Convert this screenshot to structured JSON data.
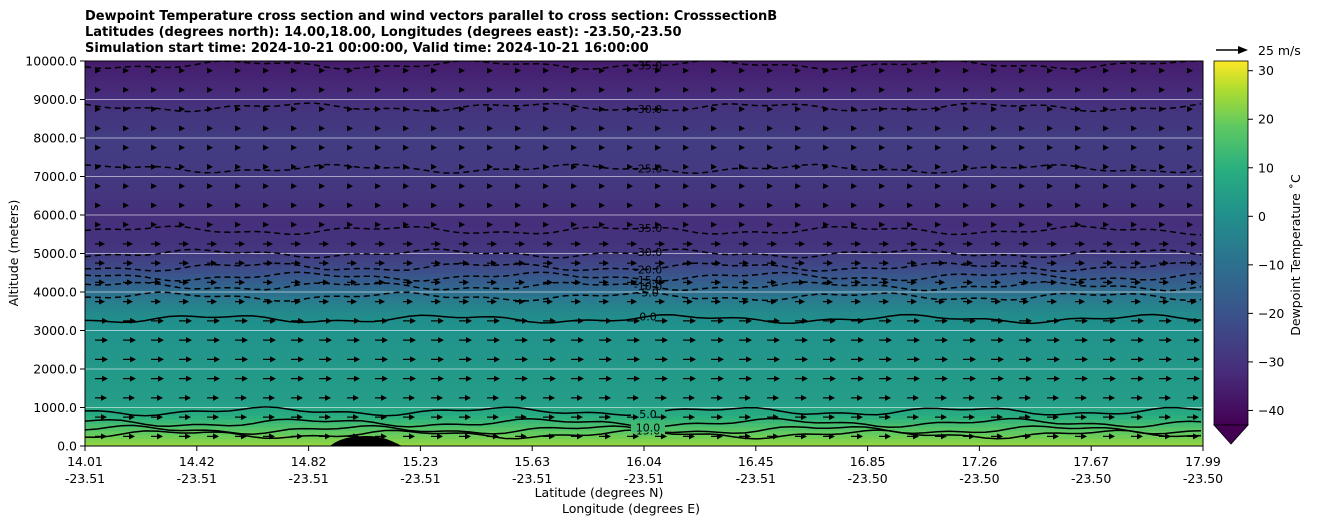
{
  "title_lines": [
    "Dewpoint Temperature cross section and wind vectors parallel to cross section: CrosssectionB",
    "Latitudes (degrees north): 14.00,18.00, Longitudes (degrees east): -23.50,-23.50",
    "Simulation start time: 2024-10-21 00:00:00, Valid time: 2024-10-21 16:00:00"
  ],
  "chart_data": {
    "type": "heatmap",
    "xlabel_lat": "Latitude (degrees N)",
    "xlabel_lon": "Longitude (degrees E)",
    "ylabel": "Altitude (meters)",
    "ylim": [
      0,
      10000
    ],
    "y_ticks": [
      "0.0",
      "1000.0",
      "2000.0",
      "3000.0",
      "4000.0",
      "5000.0",
      "6000.0",
      "7000.0",
      "8000.0",
      "9000.0",
      "10000.0"
    ],
    "x_ticks": [
      {
        "lat": "14.01",
        "lon": "-23.51"
      },
      {
        "lat": "14.42",
        "lon": "-23.51"
      },
      {
        "lat": "14.82",
        "lon": "-23.51"
      },
      {
        "lat": "15.23",
        "lon": "-23.51"
      },
      {
        "lat": "15.63",
        "lon": "-23.51"
      },
      {
        "lat": "16.04",
        "lon": "-23.51"
      },
      {
        "lat": "16.45",
        "lon": "-23.51"
      },
      {
        "lat": "16.85",
        "lon": "-23.50"
      },
      {
        "lat": "17.26",
        "lon": "-23.50"
      },
      {
        "lat": "17.67",
        "lon": "-23.50"
      },
      {
        "lat": "17.99",
        "lon": "-23.50"
      }
    ],
    "colorbar": {
      "label": "Dewpoint Temperature ˚C",
      "range": [
        -43,
        32
      ],
      "ticks": [
        "30",
        "20",
        "10",
        "0",
        "−10",
        "−20",
        "−30",
        "−40"
      ],
      "tick_values": [
        30,
        20,
        10,
        0,
        -10,
        -20,
        -30,
        -40
      ]
    },
    "quiver_key": "25 m/s",
    "dewpoint_profile": [
      {
        "alt": 0,
        "td": 24
      },
      {
        "alt": 400,
        "td": 18
      },
      {
        "alt": 800,
        "td": 9
      },
      {
        "alt": 1200,
        "td": 4
      },
      {
        "alt": 2000,
        "td": 3
      },
      {
        "alt": 3000,
        "td": 1
      },
      {
        "alt": 3300,
        "td": 0
      },
      {
        "alt": 3800,
        "td": -6
      },
      {
        "alt": 4200,
        "td": -15
      },
      {
        "alt": 4700,
        "td": -24
      },
      {
        "alt": 5200,
        "td": -30
      },
      {
        "alt": 6000,
        "td": -31
      },
      {
        "alt": 7000,
        "td": -28
      },
      {
        "alt": 8000,
        "td": -27
      },
      {
        "alt": 9000,
        "td": -31
      },
      {
        "alt": 10000,
        "td": -36
      }
    ],
    "contour_levels": [
      {
        "value": 20,
        "label": "20.0",
        "alt": 300,
        "dashed": false
      },
      {
        "value": 15,
        "label": "15.0",
        "alt": 420,
        "dashed": false
      },
      {
        "value": 10,
        "label": "10.0",
        "alt": 600,
        "dashed": false
      },
      {
        "value": 5,
        "label": "5.0",
        "alt": 900,
        "dashed": false
      },
      {
        "value": 0,
        "label": "0.0",
        "alt": 3300,
        "dashed": false
      },
      {
        "value": -5,
        "label": "-5.0",
        "alt": 3880,
        "dashed": true
      },
      {
        "value": -10,
        "label": "-10.0",
        "alt": 4150,
        "dashed": true
      },
      {
        "value": -15,
        "label": "-15.0",
        "alt": 4400,
        "dashed": true
      },
      {
        "value": -20,
        "label": "-20.0",
        "alt": 4650,
        "dashed": true
      },
      {
        "value": -30,
        "label": "-30.0",
        "alt": 5000,
        "dashed": true
      },
      {
        "value": -35,
        "label": "-35.0",
        "alt": 5600,
        "dashed": true
      },
      {
        "value": -25,
        "label": "-25.0",
        "alt": 7200,
        "dashed": true
      },
      {
        "value": -30,
        "label": "-30.0",
        "alt": 8800,
        "dashed": true
      },
      {
        "value": -35,
        "label": "-35.0",
        "alt": 9900,
        "dashed": true
      }
    ],
    "wind_rows_alt": [
      250,
      750,
      1250,
      1750,
      2250,
      2750,
      3250,
      3750,
      4250,
      4750,
      5250,
      5750,
      6250,
      6750,
      7250,
      7750,
      8250,
      8750,
      9250,
      9750
    ]
  }
}
